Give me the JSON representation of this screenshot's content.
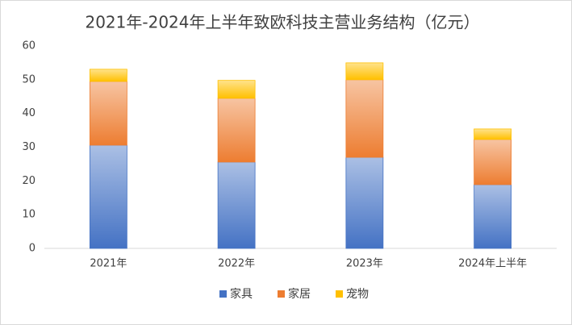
{
  "chart_data": {
    "type": "stacked_bar",
    "title": "2021年-2024年上半年致欧科技主营业务结构（亿元）",
    "categories": [
      "2021年",
      "2022年",
      "2023年",
      "2024年上半年"
    ],
    "series": [
      {
        "name": "家具",
        "color": "#4472c4",
        "values": [
          30.6,
          25.6,
          27.0,
          18.9
        ]
      },
      {
        "name": "家居",
        "color": "#ed7d31",
        "values": [
          18.9,
          18.9,
          23.0,
          13.4
        ]
      },
      {
        "name": "宠物",
        "color": "#ffc000",
        "values": [
          3.6,
          5.3,
          5.0,
          3.1
        ]
      }
    ],
    "ylim": [
      0,
      60
    ],
    "yticks": [
      0,
      10,
      20,
      30,
      40,
      50,
      60
    ],
    "grid": false
  }
}
